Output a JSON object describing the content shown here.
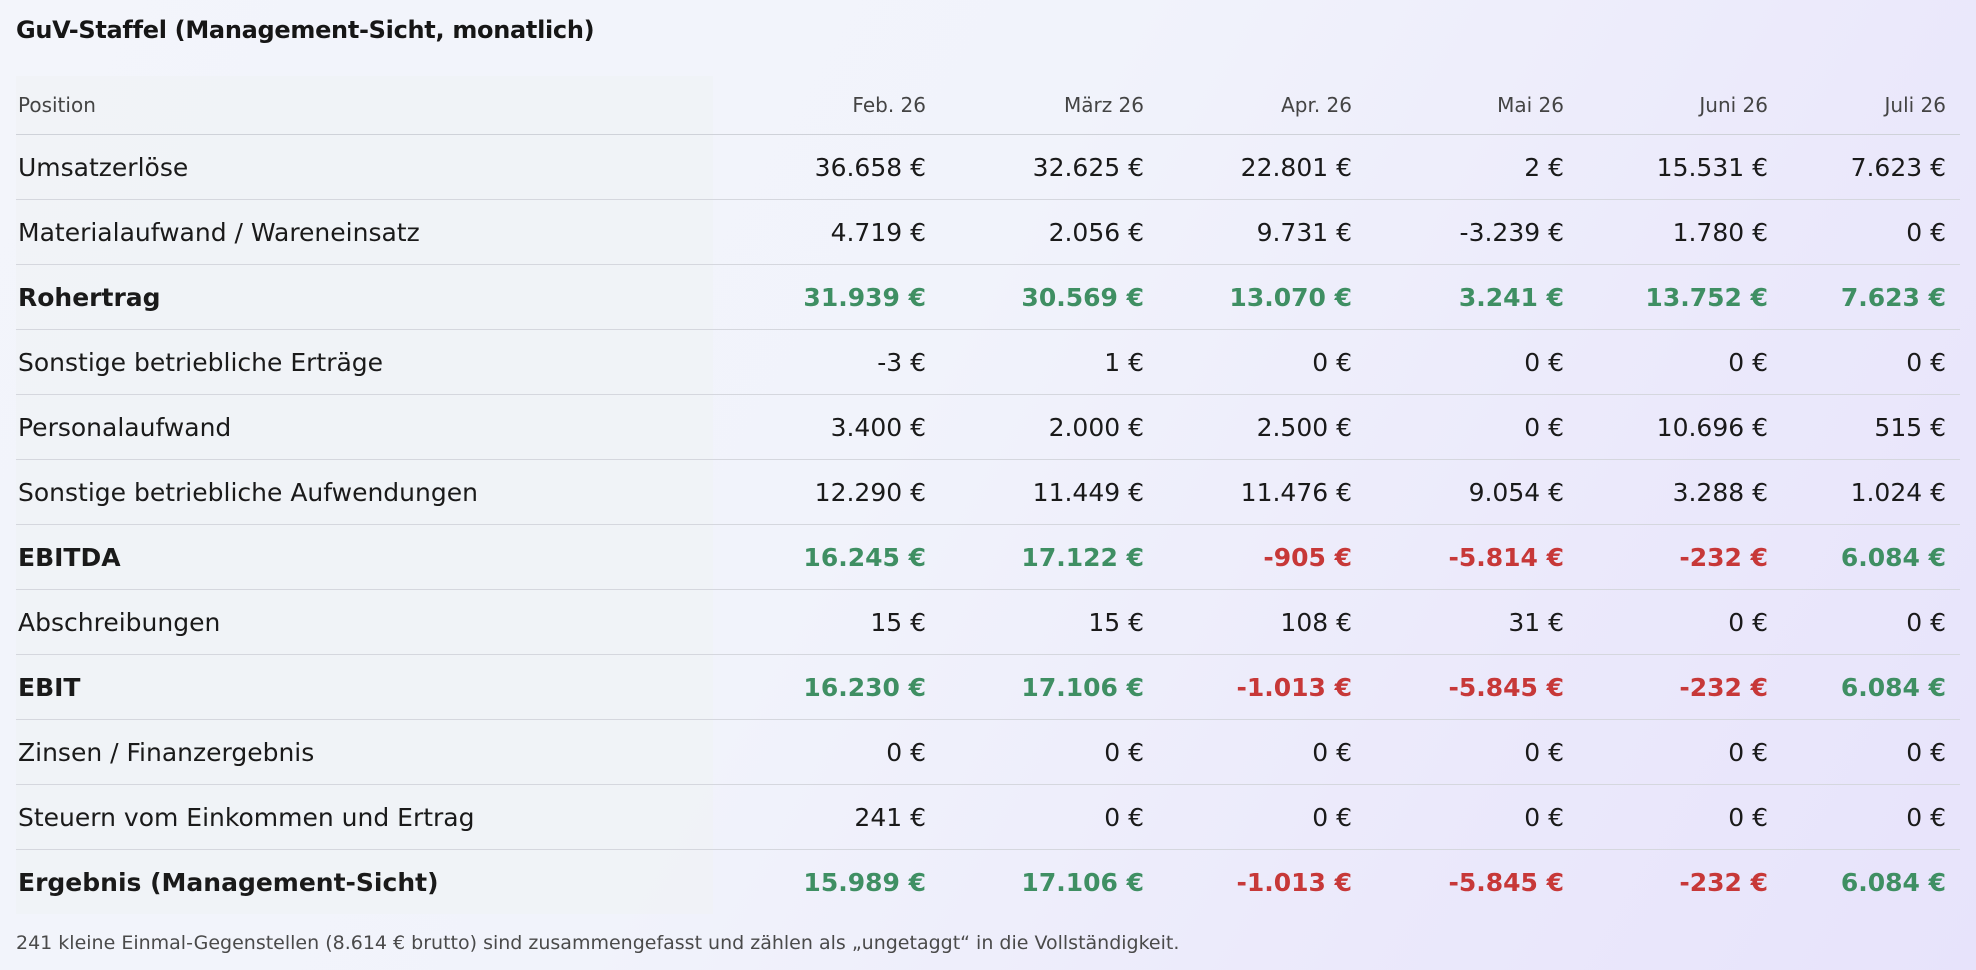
{
  "title": "GuV-Staffel (Management-Sicht, monatlich)",
  "columns": [
    "Position",
    "Feb. 26",
    "März 26",
    "Apr. 26",
    "Mai 26",
    "Juni 26",
    "Juli 26"
  ],
  "colors": {
    "positive": "#3f8f63",
    "negative": "#c73838",
    "text": "#1a1a1a"
  },
  "rows": [
    {
      "label": "Umsatzerlöse",
      "bold": false,
      "values": [
        "36.658 €",
        "32.625 €",
        "22.801 €",
        "2 €",
        "15.531 €",
        "7.623 €"
      ],
      "tones": [
        "",
        "",
        "",
        "",
        "",
        ""
      ]
    },
    {
      "label": "Materialaufwand / Wareneinsatz",
      "bold": false,
      "values": [
        "4.719 €",
        "2.056 €",
        "9.731 €",
        "-3.239 €",
        "1.780 €",
        "0 €"
      ],
      "tones": [
        "",
        "",
        "",
        "",
        "",
        ""
      ]
    },
    {
      "label": "Rohertrag",
      "bold": true,
      "values": [
        "31.939 €",
        "30.569 €",
        "13.070 €",
        "3.241 €",
        "13.752 €",
        "7.623 €"
      ],
      "tones": [
        "pos",
        "pos",
        "pos",
        "pos",
        "pos",
        "pos"
      ]
    },
    {
      "label": "Sonstige betriebliche Erträge",
      "bold": false,
      "values": [
        "-3 €",
        "1 €",
        "0 €",
        "0 €",
        "0 €",
        "0 €"
      ],
      "tones": [
        "",
        "",
        "",
        "",
        "",
        ""
      ]
    },
    {
      "label": "Personalaufwand",
      "bold": false,
      "values": [
        "3.400 €",
        "2.000 €",
        "2.500 €",
        "0 €",
        "10.696 €",
        "515 €"
      ],
      "tones": [
        "",
        "",
        "",
        "",
        "",
        ""
      ]
    },
    {
      "label": "Sonstige betriebliche Aufwendungen",
      "bold": false,
      "values": [
        "12.290 €",
        "11.449 €",
        "11.476 €",
        "9.054 €",
        "3.288 €",
        "1.024 €"
      ],
      "tones": [
        "",
        "",
        "",
        "",
        "",
        ""
      ]
    },
    {
      "label": "EBITDA",
      "bold": true,
      "values": [
        "16.245 €",
        "17.122 €",
        "-905 €",
        "-5.814 €",
        "-232 €",
        "6.084 €"
      ],
      "tones": [
        "pos",
        "pos",
        "neg",
        "neg",
        "neg",
        "pos"
      ]
    },
    {
      "label": "Abschreibungen",
      "bold": false,
      "values": [
        "15 €",
        "15 €",
        "108 €",
        "31 €",
        "0 €",
        "0 €"
      ],
      "tones": [
        "",
        "",
        "",
        "",
        "",
        ""
      ]
    },
    {
      "label": "EBIT",
      "bold": true,
      "values": [
        "16.230 €",
        "17.106 €",
        "-1.013 €",
        "-5.845 €",
        "-232 €",
        "6.084 €"
      ],
      "tones": [
        "pos",
        "pos",
        "neg",
        "neg",
        "neg",
        "pos"
      ]
    },
    {
      "label": "Zinsen / Finanzergebnis",
      "bold": false,
      "values": [
        "0 €",
        "0 €",
        "0 €",
        "0 €",
        "0 €",
        "0 €"
      ],
      "tones": [
        "",
        "",
        "",
        "",
        "",
        ""
      ]
    },
    {
      "label": "Steuern vom Einkommen und Ertrag",
      "bold": false,
      "values": [
        "241 €",
        "0 €",
        "0 €",
        "0 €",
        "0 €",
        "0 €"
      ],
      "tones": [
        "",
        "",
        "",
        "",
        "",
        ""
      ]
    },
    {
      "label": "Ergebnis (Management-Sicht)",
      "bold": true,
      "values": [
        "15.989 €",
        "17.106 €",
        "-1.013 €",
        "-5.845 €",
        "-232 €",
        "6.084 €"
      ],
      "tones": [
        "pos",
        "pos",
        "neg",
        "neg",
        "neg",
        "pos"
      ]
    }
  ],
  "footnote": "241 kleine Einmal-Gegenstellen (8.614 € brutto) sind zusammengefasst und zählen als „ungetaggt“ in die Vollständigkeit."
}
